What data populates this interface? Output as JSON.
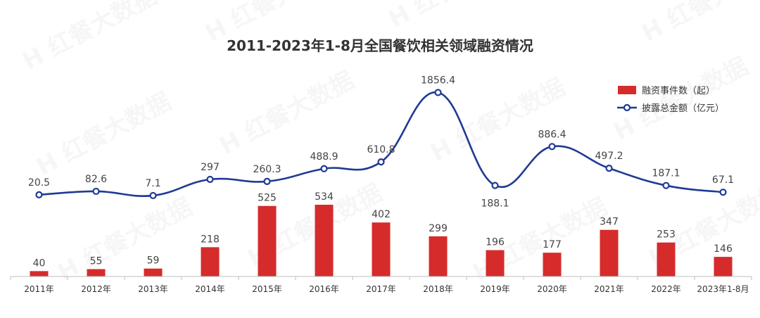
{
  "chart_data": {
    "type": "bar",
    "title": "2011-2023年1-8月全国餐饮相关领域融资情况",
    "categories": [
      "2011年",
      "2012年",
      "2013年",
      "2014年",
      "2015年",
      "2016年",
      "2017年",
      "2018年",
      "2019年",
      "2020年",
      "2021年",
      "2022年",
      "2023年1-8月"
    ],
    "series": [
      {
        "name": "融资事件数（起）",
        "type": "bar",
        "color": "#d62b2b",
        "values": [
          40,
          55,
          59,
          218,
          525,
          534,
          402,
          299,
          196,
          177,
          347,
          253,
          146
        ],
        "labels": [
          "40",
          "55",
          "59",
          "218",
          "525",
          "534",
          "402",
          "299",
          "196",
          "177",
          "347",
          "253",
          "146"
        ]
      },
      {
        "name": "披露总金额（亿元）",
        "type": "line",
        "color": "#1f3a93",
        "values": [
          20.5,
          82.6,
          7.1,
          297,
          260.3,
          488.9,
          610.8,
          1856.4,
          188.1,
          886.4,
          497.2,
          187.1,
          67.1
        ],
        "labels": [
          "20.5",
          "82.6",
          "7.1",
          "297",
          "260.3",
          "488.9",
          "610.8",
          "1856.4",
          "188.1",
          "886.4",
          "497.2",
          "187.1",
          "67.1"
        ]
      }
    ],
    "legend_position": "top-right",
    "grid": false,
    "watermark": "红餐大数据"
  }
}
